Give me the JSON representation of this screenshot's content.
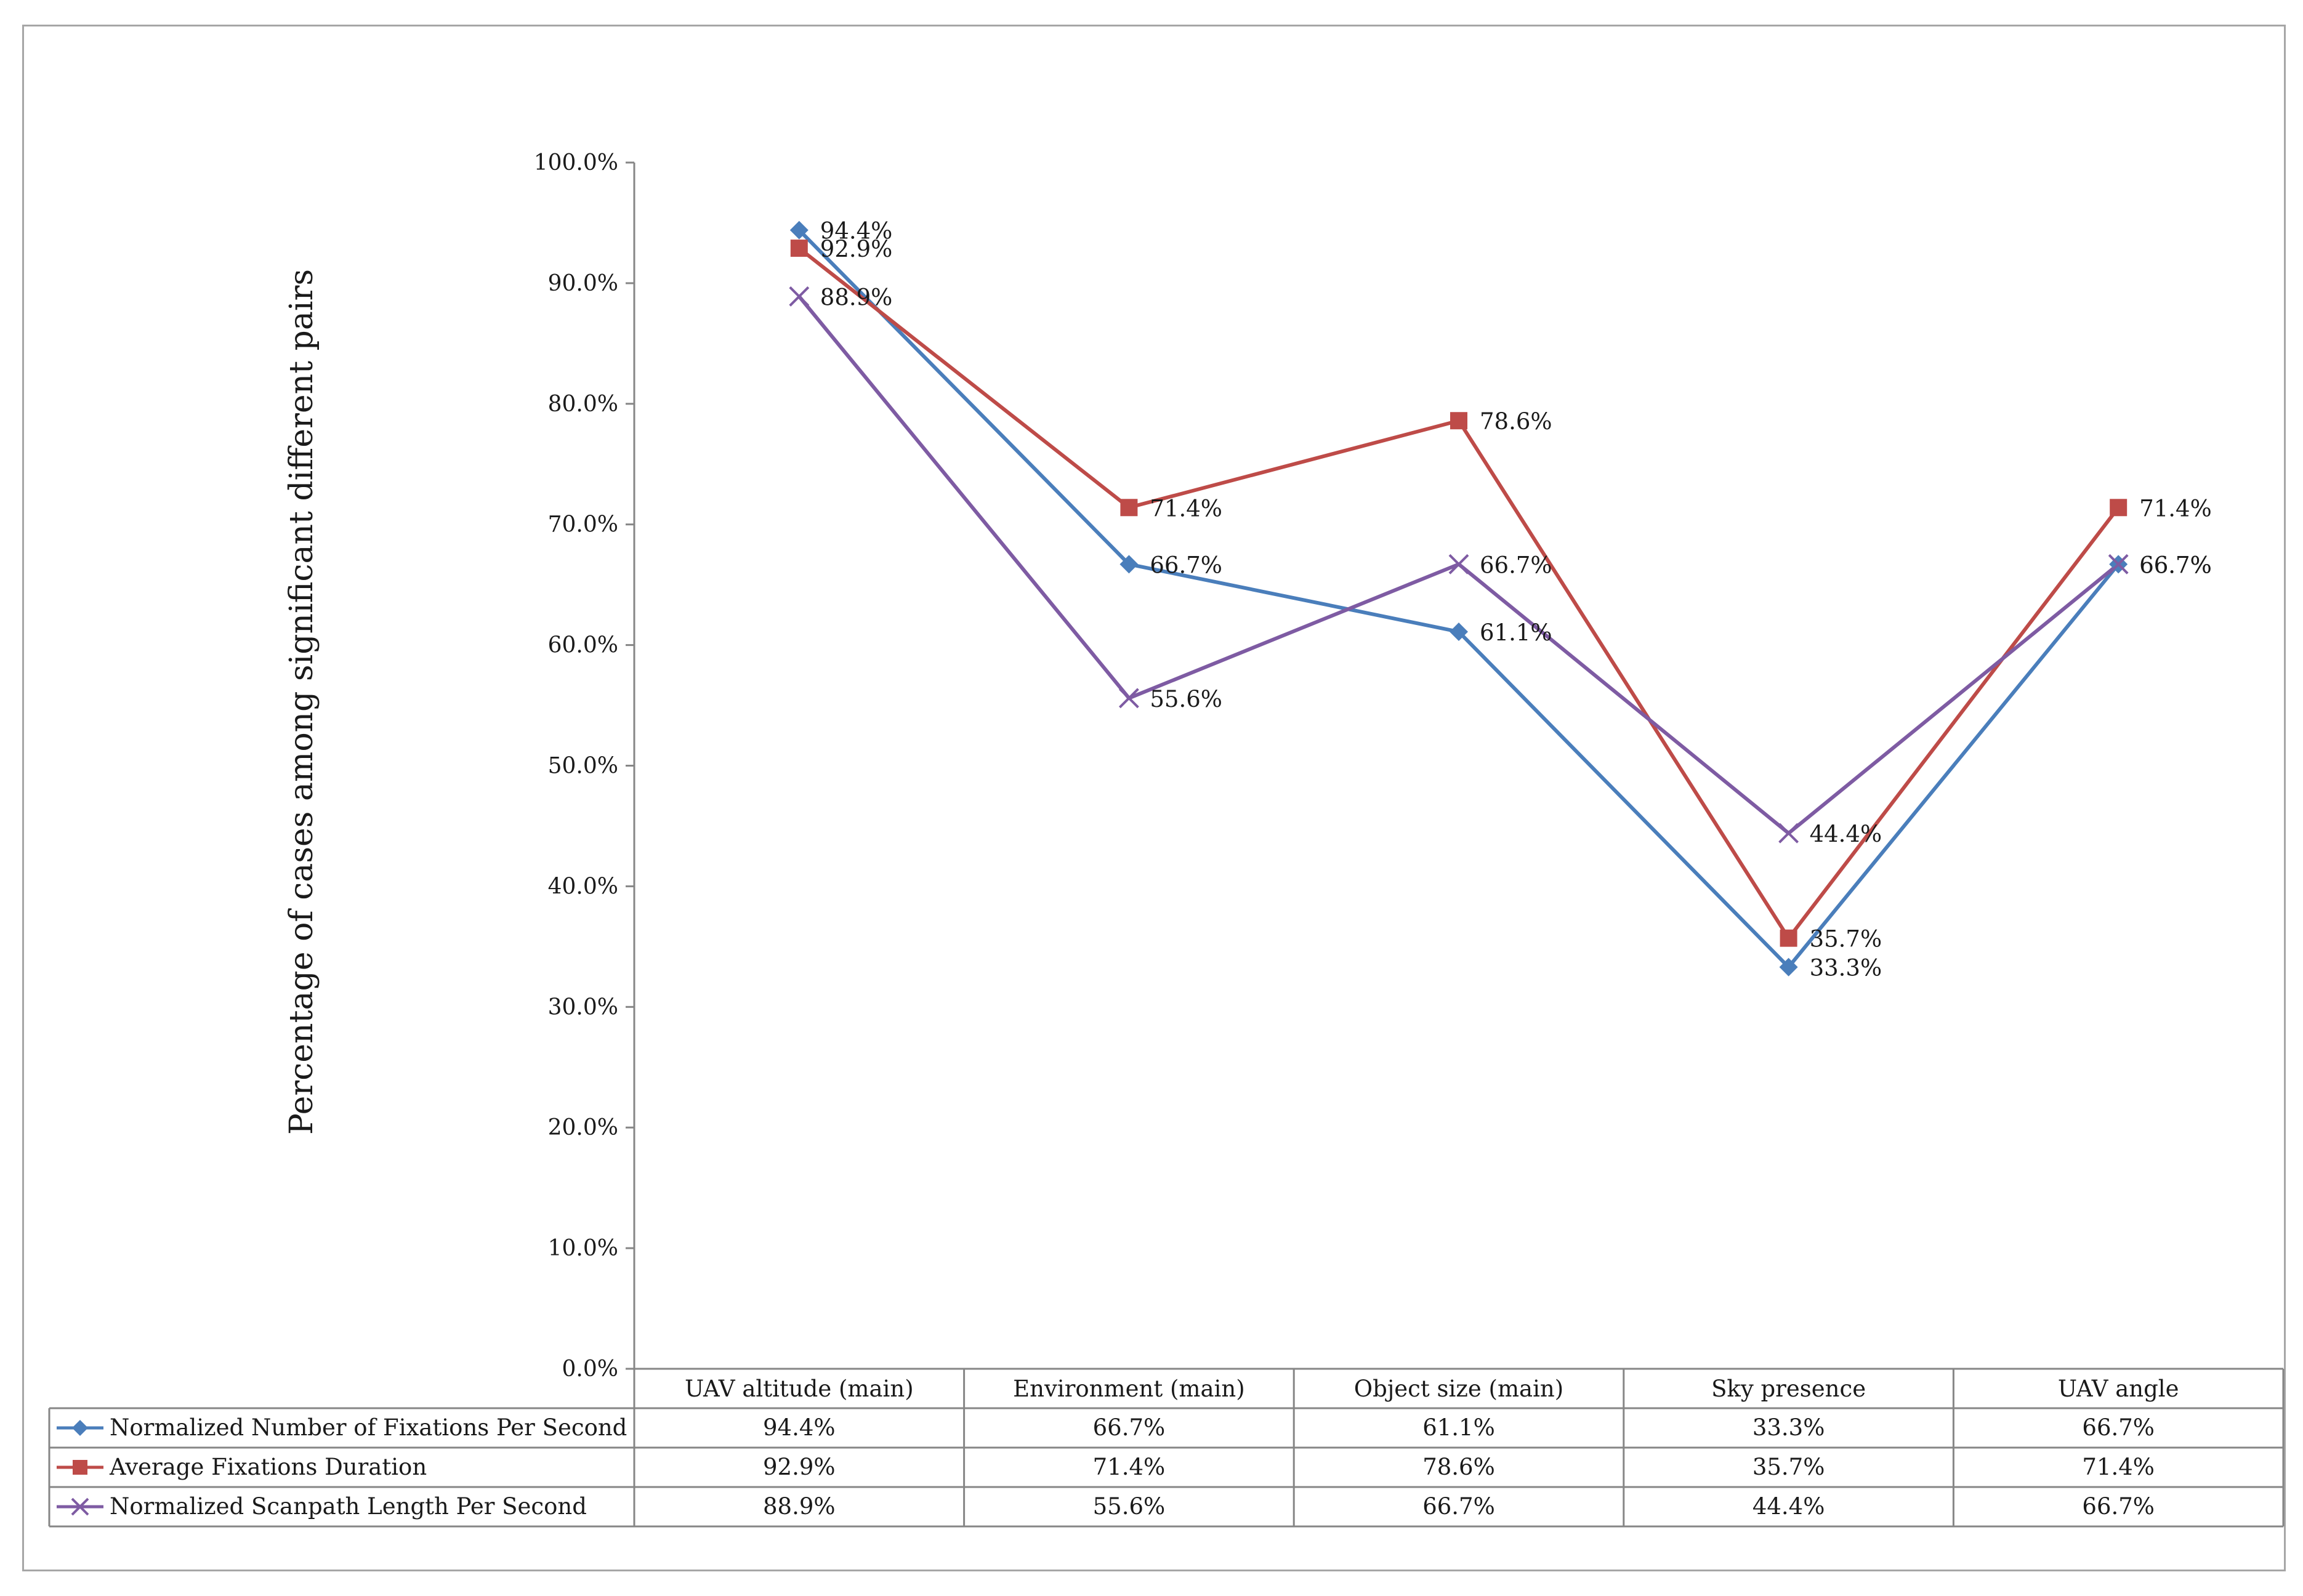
{
  "chart_data": {
    "type": "line",
    "title": "",
    "xlabel": "",
    "ylabel": "Percentage of cases  among significant different pairs",
    "ylim": [
      0,
      100
    ],
    "y_ticks": [
      "0.0%",
      "10.0%",
      "20.0%",
      "30.0%",
      "40.0%",
      "50.0%",
      "60.0%",
      "70.0%",
      "80.0%",
      "90.0%",
      "100.0%"
    ],
    "categories": [
      "UAV altitude (main)",
      "Environment (main)",
      "Object size (main)",
      "Sky presence",
      "UAV angle"
    ],
    "grid": false,
    "legend": "data-table-left",
    "series": [
      {
        "name": "Normalized Number of Fixations Per Second",
        "values": [
          94.4,
          66.7,
          61.1,
          33.3,
          66.7
        ],
        "labels": [
          "94.4%",
          "66.7%",
          "61.1%",
          "33.3%",
          "66.7%"
        ],
        "color": "#4a7ebb",
        "marker": "diamond"
      },
      {
        "name": "Average Fixations Duration",
        "values": [
          92.9,
          71.4,
          78.6,
          35.7,
          71.4
        ],
        "labels": [
          "92.9%",
          "71.4%",
          "78.6%",
          "35.7%",
          "71.4%"
        ],
        "color": "#be4b48",
        "marker": "square"
      },
      {
        "name": "Normalized Scanpath Length Per Second",
        "values": [
          88.9,
          55.6,
          66.7,
          44.4,
          66.7
        ],
        "labels": [
          "88.9%",
          "55.6%",
          "66.7%",
          "44.4%",
          "66.7%"
        ],
        "color": "#7e5ba3",
        "marker": "x"
      }
    ]
  }
}
